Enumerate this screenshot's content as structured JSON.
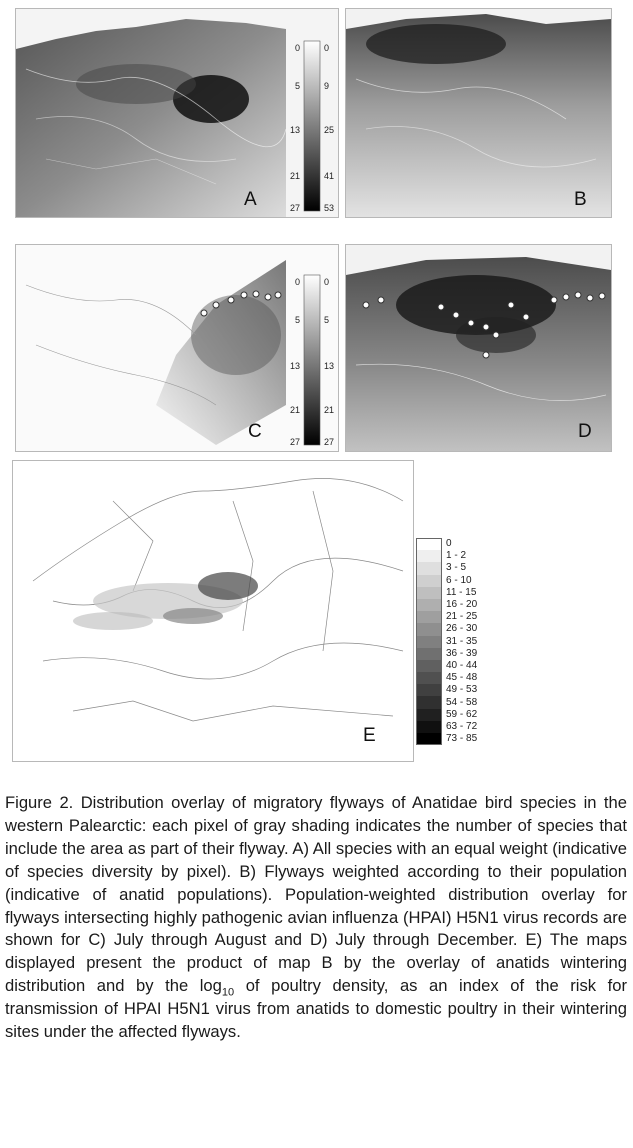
{
  "panels": [
    {
      "id": "A",
      "label": "A",
      "left_ticks": [
        "0",
        "5",
        "13",
        "21",
        "27"
      ],
      "right_ticks": [
        "0",
        "9",
        "25",
        "41",
        "53"
      ]
    },
    {
      "id": "B",
      "label": "B"
    },
    {
      "id": "C",
      "label": "C",
      "left_ticks": [
        "0",
        "5",
        "13",
        "21",
        "27"
      ],
      "right_ticks": [
        "0",
        "5",
        "13",
        "21",
        "27"
      ]
    },
    {
      "id": "D",
      "label": "D"
    },
    {
      "id": "E",
      "label": "E"
    }
  ],
  "legend_e": [
    "0",
    "1 - 2",
    "3 - 5",
    "6 - 10",
    "11 - 15",
    "16 - 20",
    "21 - 25",
    "26 - 30",
    "31 - 35",
    "36 - 39",
    "40 - 44",
    "45 - 48",
    "49 - 53",
    "54 - 58",
    "59 - 62",
    "63 - 72",
    "73 - 85"
  ],
  "caption": {
    "main": "Figure 2. Distribution overlay of migratory flyways of Anatidae bird species in the western Palearctic: each pixel of gray shading indicates the number of species that include the area as part of their flyway. A) All species with an equal weight (indicative of species diversity by pixel). B) Flyways weighted according to their population (indicative of anatid populations). Population-weighted distribution overlay for flyways intersecting highly pathogenic avian influenza (HPAI) H5N1 virus records are shown for C) July through August and D) July through December. E) The maps displayed present the product of map B by the overlay of anatids wintering distribution and by the log",
    "sub": "10",
    "tail": " of poultry density, as an index of the risk for transmission of HPAI H5N1 virus from anatids to domestic poultry in their wintering sites under the affected flyways."
  }
}
